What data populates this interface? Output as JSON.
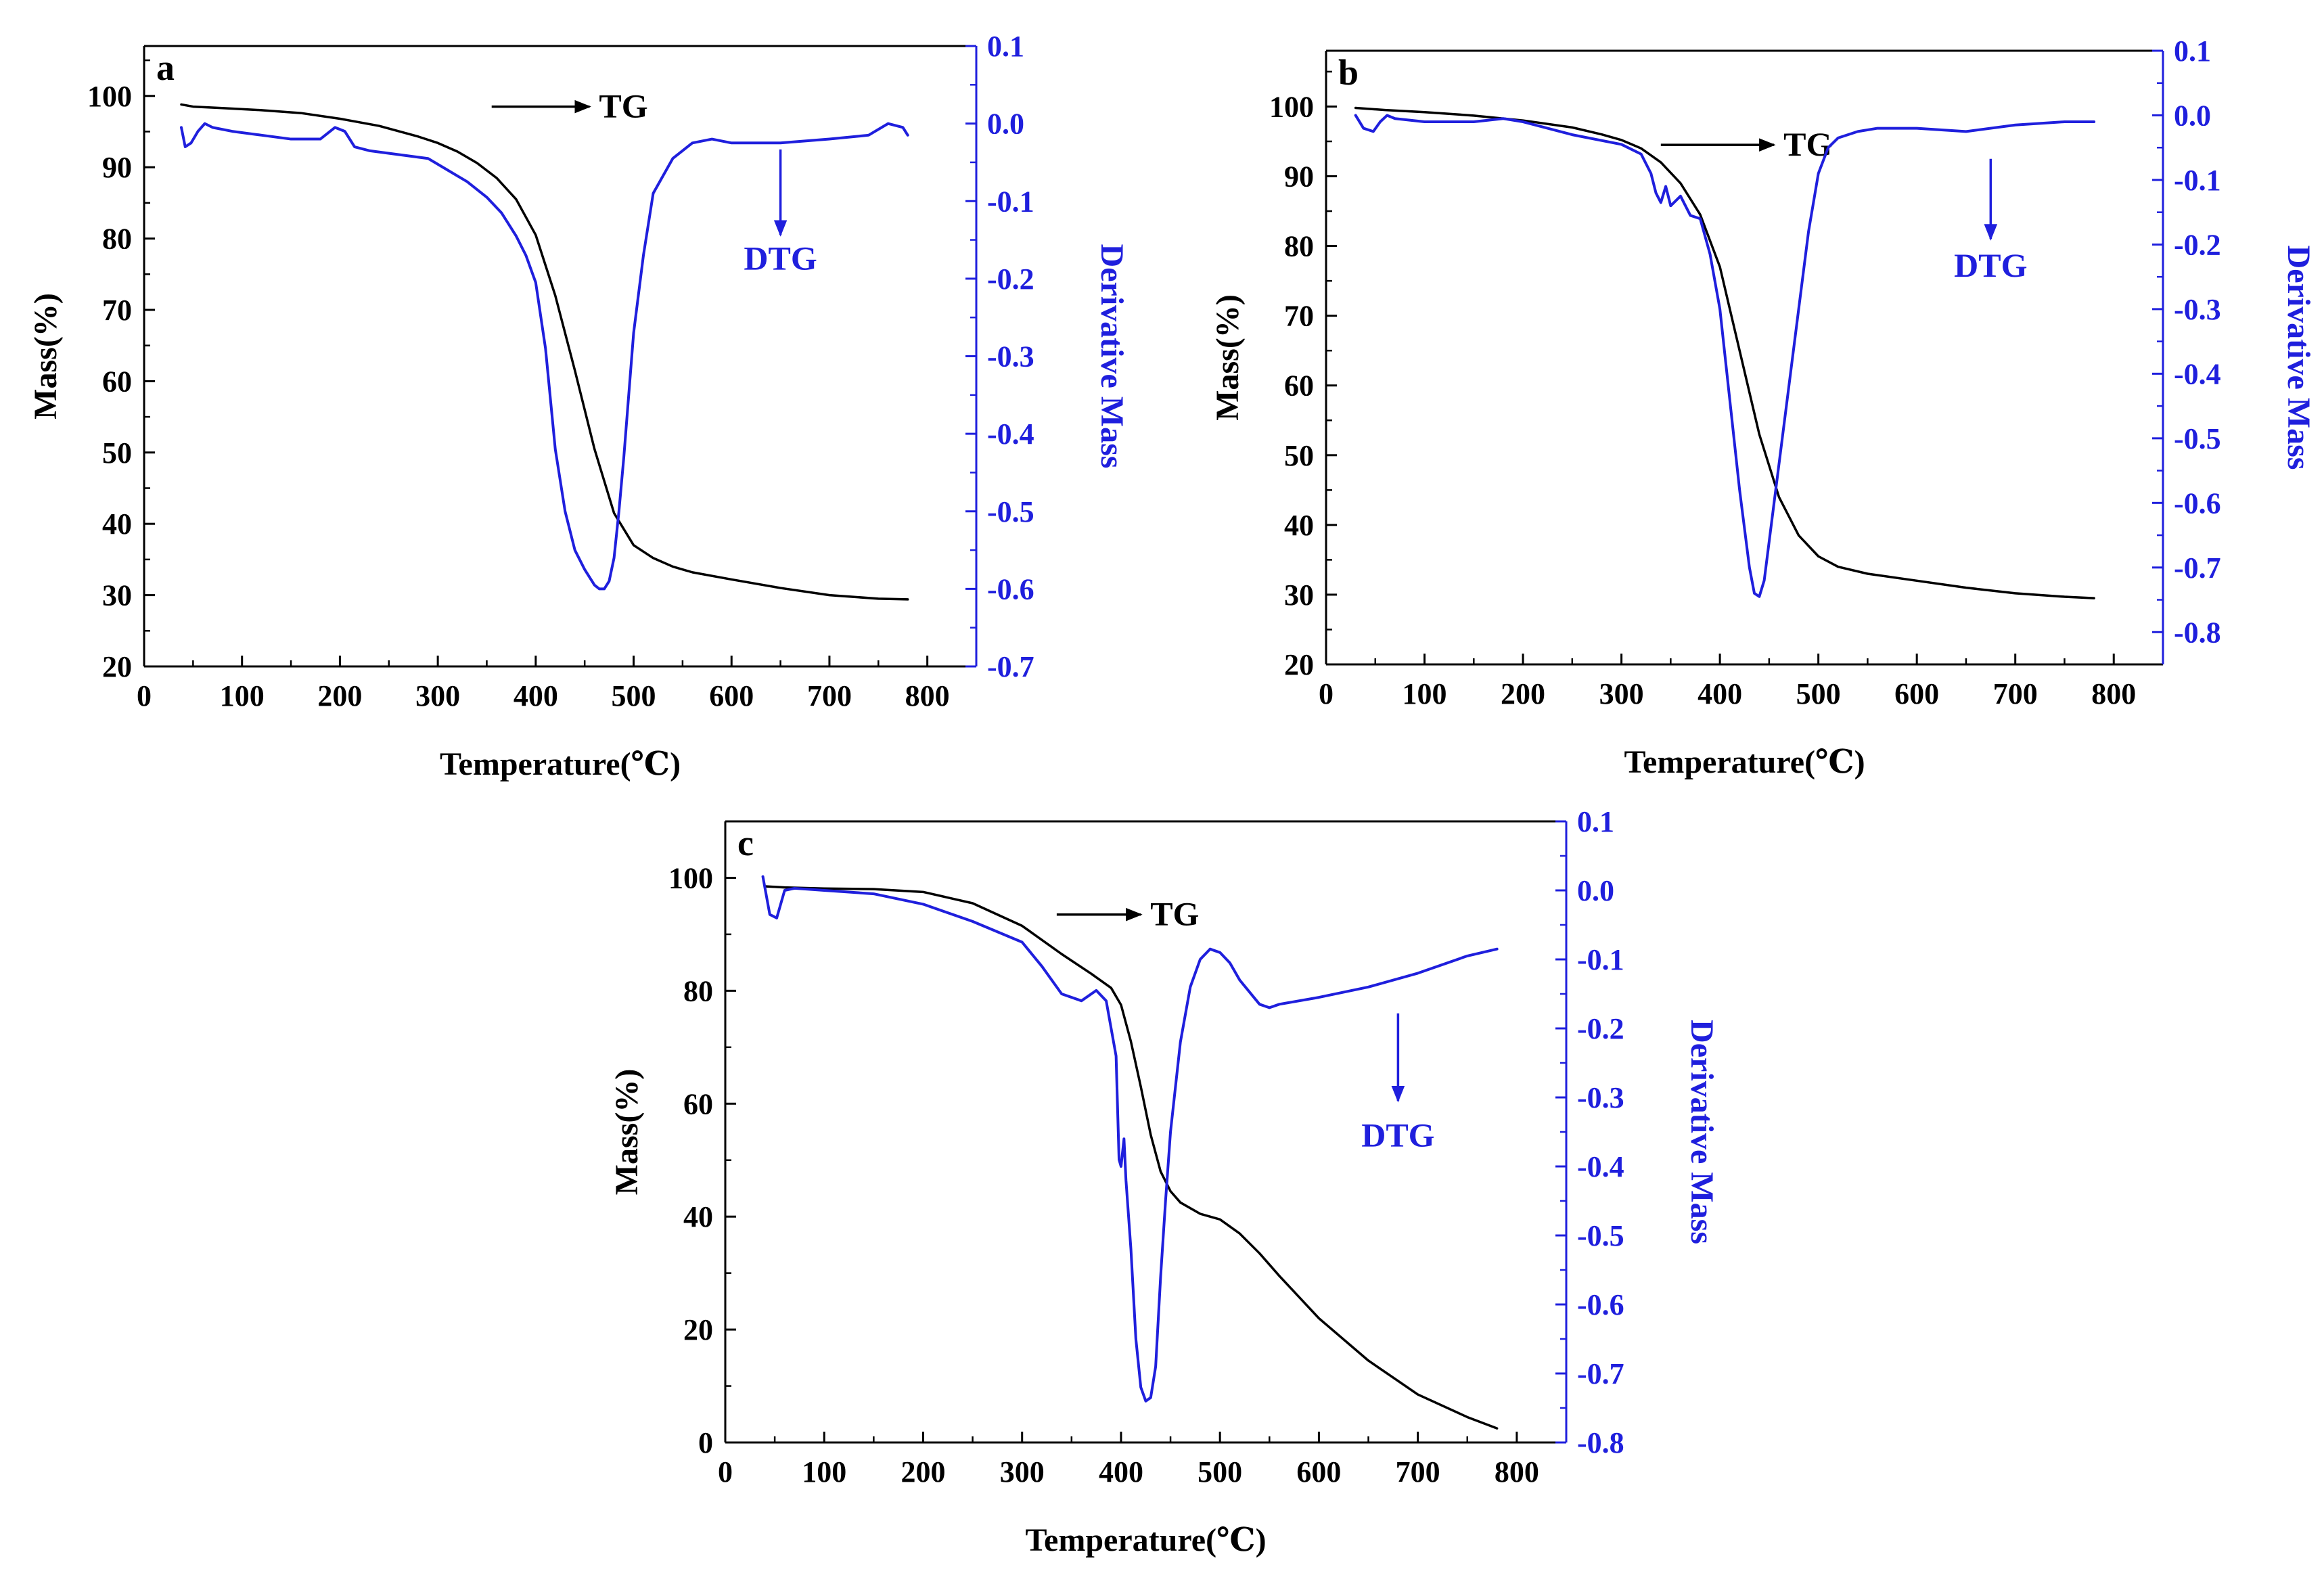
{
  "figure": {
    "colors": {
      "tg": "#000000",
      "dtg": "#1f1fdd",
      "axis_left": "#000000",
      "axis_right": "#1f1fdd"
    }
  },
  "chart_data": [
    {
      "type": "line",
      "panel_label": "a",
      "xlabel": "Temperature(℃)",
      "ylabel_left": "Mass(%)",
      "ylabel_right": "Derivative Mass",
      "xlim": [
        0,
        850
      ],
      "ylim_left": [
        20,
        107
      ],
      "ylim_right": [
        -0.7,
        0.1
      ],
      "xticks": [
        0,
        100,
        200,
        300,
        400,
        500,
        600,
        700,
        800
      ],
      "xtick_labels": [
        "0",
        "100",
        "200",
        "300",
        "400",
        "500",
        "600",
        "700",
        "800"
      ],
      "yticks_left": [
        20,
        30,
        40,
        50,
        60,
        70,
        80,
        90,
        100
      ],
      "ytick_labels_left": [
        "20",
        "30",
        "40",
        "50",
        "60",
        "70",
        "80",
        "90",
        "100"
      ],
      "yticks_right": [
        -0.7,
        -0.6,
        -0.5,
        -0.4,
        -0.3,
        -0.2,
        -0.1,
        0.0,
        0.1
      ],
      "ytick_labels_right": [
        "-0.7",
        "-0.6",
        "-0.5",
        "-0.4",
        "-0.3",
        "-0.2",
        "-0.1",
        "0.0",
        "0.1"
      ],
      "annotations": [
        {
          "text": "TG",
          "x": 470,
          "y_left": 98.5,
          "arrow_from_x": 355,
          "arrow_to_x": 455,
          "axis": "left"
        },
        {
          "text": "DTG",
          "x": 650,
          "y_left": 78.5,
          "arrow_from_y": 92.5,
          "arrow_to_y": 80.5,
          "axis": "left"
        }
      ],
      "series": [
        {
          "name": "TG",
          "axis": "left",
          "x": [
            38,
            50,
            80,
            120,
            160,
            200,
            240,
            280,
            300,
            320,
            340,
            360,
            380,
            400,
            420,
            440,
            460,
            480,
            500,
            520,
            540,
            560,
            600,
            650,
            700,
            750,
            780
          ],
          "y": [
            98.8,
            98.5,
            98.3,
            98.0,
            97.6,
            96.8,
            95.8,
            94.3,
            93.4,
            92.2,
            90.6,
            88.5,
            85.5,
            80.5,
            72.0,
            61.5,
            50.5,
            41.5,
            37.0,
            35.2,
            34.0,
            33.2,
            32.2,
            31.0,
            30.0,
            29.5,
            29.4
          ]
        },
        {
          "name": "DTG",
          "axis": "right",
          "x": [
            38,
            42,
            48,
            55,
            62,
            70,
            90,
            120,
            150,
            180,
            195,
            205,
            215,
            230,
            260,
            290,
            310,
            330,
            350,
            365,
            380,
            390,
            400,
            410,
            420,
            430,
            440,
            450,
            460,
            465,
            470,
            475,
            480,
            485,
            490,
            495,
            500,
            510,
            520,
            540,
            560,
            580,
            600,
            650,
            700,
            740,
            760,
            775,
            780
          ],
          "y": [
            -0.005,
            -0.03,
            -0.025,
            -0.01,
            0.0,
            -0.005,
            -0.01,
            -0.015,
            -0.02,
            -0.02,
            -0.005,
            -0.01,
            -0.03,
            -0.035,
            -0.04,
            -0.045,
            -0.06,
            -0.075,
            -0.095,
            -0.115,
            -0.145,
            -0.17,
            -0.205,
            -0.29,
            -0.42,
            -0.5,
            -0.55,
            -0.575,
            -0.595,
            -0.6,
            -0.6,
            -0.59,
            -0.56,
            -0.5,
            -0.43,
            -0.35,
            -0.27,
            -0.17,
            -0.09,
            -0.045,
            -0.025,
            -0.02,
            -0.025,
            -0.025,
            -0.02,
            -0.015,
            0.0,
            -0.005,
            -0.015
          ]
        }
      ]
    },
    {
      "type": "line",
      "panel_label": "b",
      "xlabel": "Temperature(℃)",
      "ylabel_left": "Mass(%)",
      "ylabel_right": "Derivative Mass",
      "xlim": [
        0,
        850
      ],
      "ylim_left": [
        20,
        108
      ],
      "ylim_right": [
        -0.85,
        0.1
      ],
      "xticks": [
        0,
        100,
        200,
        300,
        400,
        500,
        600,
        700,
        800
      ],
      "xtick_labels": [
        "0",
        "100",
        "200",
        "300",
        "400",
        "500",
        "600",
        "700",
        "800"
      ],
      "yticks_left": [
        20,
        30,
        40,
        50,
        60,
        70,
        80,
        90,
        100
      ],
      "ytick_labels_left": [
        "20",
        "30",
        "40",
        "50",
        "60",
        "70",
        "80",
        "90",
        "100"
      ],
      "yticks_right": [
        -0.8,
        -0.7,
        -0.6,
        -0.5,
        -0.4,
        -0.3,
        -0.2,
        -0.1,
        0.0,
        0.1
      ],
      "ytick_labels_right": [
        "-0.8",
        "-0.7",
        "-0.6",
        "-0.5",
        "-0.4",
        "-0.3",
        "-0.2",
        "-0.1",
        "0.0",
        "0.1"
      ],
      "annotations": [
        {
          "text": "TG",
          "x": 470,
          "y_left": 94.5,
          "arrow_from_x": 340,
          "arrow_to_x": 455,
          "axis": "left"
        },
        {
          "text": "DTG",
          "x": 675,
          "y_left": 78.5,
          "arrow_from_y": 92.5,
          "arrow_to_y": 81.0,
          "axis": "left"
        }
      ],
      "series": [
        {
          "name": "TG",
          "axis": "left",
          "x": [
            30,
            60,
            100,
            150,
            200,
            250,
            280,
            300,
            320,
            340,
            360,
            380,
            400,
            420,
            440,
            460,
            480,
            500,
            520,
            550,
            600,
            650,
            700,
            750,
            780
          ],
          "y": [
            99.8,
            99.5,
            99.2,
            98.7,
            98.0,
            97.0,
            96.0,
            95.2,
            94.0,
            92.0,
            89.0,
            84.5,
            77.0,
            65.0,
            53.0,
            44.0,
            38.5,
            35.5,
            34.0,
            33.0,
            32.0,
            31.0,
            30.2,
            29.7,
            29.5
          ]
        },
        {
          "name": "DTG",
          "axis": "right",
          "x": [
            30,
            38,
            48,
            55,
            62,
            70,
            100,
            150,
            180,
            200,
            250,
            300,
            320,
            330,
            335,
            340,
            345,
            350,
            360,
            370,
            380,
            390,
            400,
            410,
            420,
            430,
            435,
            440,
            445,
            450,
            460,
            470,
            480,
            490,
            500,
            510,
            520,
            540,
            560,
            580,
            600,
            650,
            700,
            750,
            780
          ],
          "y": [
            0.0,
            -0.02,
            -0.025,
            -0.01,
            0.0,
            -0.005,
            -0.01,
            -0.01,
            -0.005,
            -0.01,
            -0.03,
            -0.045,
            -0.06,
            -0.09,
            -0.12,
            -0.135,
            -0.11,
            -0.14,
            -0.125,
            -0.155,
            -0.16,
            -0.215,
            -0.3,
            -0.44,
            -0.58,
            -0.7,
            -0.74,
            -0.745,
            -0.72,
            -0.66,
            -0.54,
            -0.42,
            -0.3,
            -0.18,
            -0.09,
            -0.05,
            -0.035,
            -0.025,
            -0.02,
            -0.02,
            -0.02,
            -0.025,
            -0.015,
            -0.01,
            -0.01
          ]
        }
      ]
    },
    {
      "type": "line",
      "panel_label": "c",
      "xlabel": "Temperature(℃)",
      "ylabel_left": "Mass(%)",
      "ylabel_right": "Derivative Mass",
      "xlim": [
        0,
        850
      ],
      "ylim_left": [
        0,
        110
      ],
      "ylim_right": [
        -0.8,
        0.1
      ],
      "xticks": [
        0,
        100,
        200,
        300,
        400,
        500,
        600,
        700,
        800
      ],
      "xtick_labels": [
        "0",
        "100",
        "200",
        "300",
        "400",
        "500",
        "600",
        "700",
        "800"
      ],
      "yticks_left": [
        0,
        20,
        40,
        60,
        80,
        100
      ],
      "ytick_labels_left": [
        "0",
        "20",
        "40",
        "60",
        "80",
        "100"
      ],
      "yticks_right": [
        -0.8,
        -0.7,
        -0.6,
        -0.5,
        -0.4,
        -0.3,
        -0.2,
        -0.1,
        0.0,
        0.1
      ],
      "ytick_labels_right": [
        "-0.8",
        "-0.7",
        "-0.6",
        "-0.5",
        "-0.4",
        "-0.3",
        "-0.2",
        "-0.1",
        "0.0",
        "0.1"
      ],
      "annotations": [
        {
          "text": "TG",
          "x": 435,
          "y_left": 93.5,
          "arrow_from_x": 335,
          "arrow_to_x": 420,
          "axis": "left"
        },
        {
          "text": "DTG",
          "x": 680,
          "y_left": 56.0,
          "arrow_from_y": 76.0,
          "arrow_to_y": 60.5,
          "axis": "left"
        }
      ],
      "series": [
        {
          "name": "TG",
          "axis": "left",
          "x": [
            40,
            60,
            100,
            150,
            200,
            250,
            300,
            340,
            370,
            390,
            400,
            410,
            420,
            430,
            440,
            450,
            460,
            480,
            500,
            520,
            540,
            560,
            600,
            650,
            700,
            750,
            780
          ],
          "y": [
            98.5,
            98.3,
            98.1,
            98.0,
            97.5,
            95.5,
            91.5,
            86.5,
            83.0,
            80.5,
            77.5,
            71.0,
            63.0,
            54.5,
            48.0,
            44.5,
            42.5,
            40.5,
            39.5,
            37.0,
            33.5,
            29.5,
            22.0,
            14.5,
            8.5,
            4.5,
            2.5
          ]
        },
        {
          "name": "DTG",
          "axis": "right",
          "x": [
            38,
            45,
            52,
            60,
            70,
            100,
            150,
            200,
            250,
            300,
            320,
            340,
            360,
            375,
            385,
            390,
            395,
            398,
            400,
            403,
            405,
            410,
            415,
            420,
            425,
            430,
            435,
            440,
            445,
            450,
            460,
            470,
            480,
            490,
            500,
            510,
            520,
            540,
            550,
            560,
            600,
            650,
            700,
            750,
            780
          ],
          "y": [
            0.02,
            -0.035,
            -0.04,
            0.0,
            0.003,
            0.0,
            -0.005,
            -0.02,
            -0.045,
            -0.075,
            -0.11,
            -0.15,
            -0.16,
            -0.145,
            -0.16,
            -0.2,
            -0.24,
            -0.39,
            -0.4,
            -0.36,
            -0.42,
            -0.52,
            -0.65,
            -0.72,
            -0.74,
            -0.735,
            -0.69,
            -0.56,
            -0.45,
            -0.35,
            -0.22,
            -0.14,
            -0.1,
            -0.085,
            -0.09,
            -0.105,
            -0.13,
            -0.165,
            -0.17,
            -0.165,
            -0.155,
            -0.14,
            -0.12,
            -0.095,
            -0.085
          ]
        }
      ]
    }
  ]
}
